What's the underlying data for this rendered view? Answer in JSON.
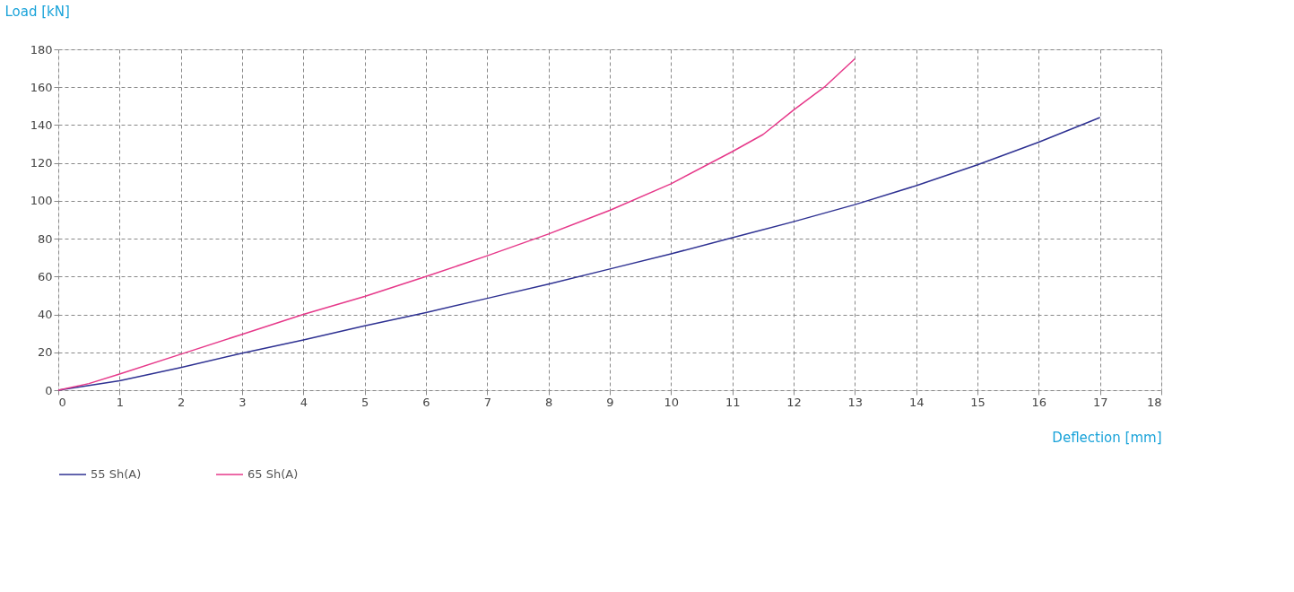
{
  "chart_data": {
    "type": "line",
    "xlabel": "Deflection [mm]",
    "ylabel": "Load  [kN]",
    "xlim": [
      0,
      18
    ],
    "xticks": [
      0,
      1,
      2,
      3,
      4,
      5,
      6,
      7,
      8,
      9,
      10,
      11,
      12,
      13,
      14,
      15,
      16,
      17,
      18
    ],
    "ylim": [
      0,
      180
    ],
    "yticks": [
      0,
      20,
      40,
      60,
      80,
      100,
      120,
      140,
      160,
      180
    ],
    "grid": true,
    "legend": "bottom",
    "line_style": "solid",
    "marker": "none",
    "series": [
      {
        "name": "55 Sh(A)",
        "color": "#2e3192",
        "x": [
          0,
          1,
          2,
          3,
          4,
          5,
          6,
          7,
          8,
          9,
          10,
          11,
          12,
          13,
          14,
          15,
          16,
          17
        ],
        "values": [
          0,
          5,
          12,
          19.5,
          26.5,
          34,
          41,
          48.5,
          56,
          64,
          72,
          80.5,
          89,
          98,
          108,
          119,
          131,
          144
        ]
      },
      {
        "name": "65 Sh(A)",
        "color": "#e6398a",
        "x": [
          0,
          0.5,
          1,
          2,
          3,
          4,
          5,
          6,
          7,
          8,
          9,
          10,
          11,
          11.5,
          12,
          12.5,
          13
        ],
        "values": [
          0,
          3.5,
          8.5,
          19,
          29.5,
          40,
          49.5,
          60,
          71,
          82.5,
          95,
          109,
          126,
          135,
          148,
          160,
          175
        ]
      }
    ]
  }
}
